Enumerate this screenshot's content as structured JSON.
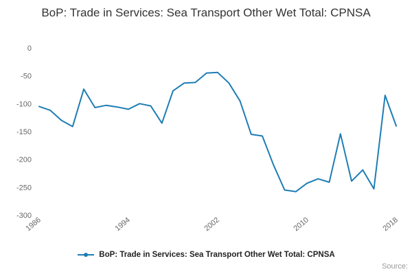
{
  "title": "BoP: Trade in Services: Sea Transport Other Wet Total: CPNSA",
  "legend": {
    "label": "BoP: Trade in Services: Sea Transport Other Wet Total: CPNSA"
  },
  "source_label": "Source:",
  "colors": {
    "line": "#1d7cb4",
    "axis_text": "#666666",
    "title_text": "#333333"
  },
  "chart_data": {
    "type": "line",
    "title": "BoP: Trade in Services: Sea Transport Other Wet Total: CPNSA",
    "xlabel": "",
    "ylabel": "",
    "ylim": [
      -300,
      0
    ],
    "yticks": [
      0,
      -50,
      -100,
      -150,
      -200,
      -250,
      -300
    ],
    "xtick_labels": [
      1986,
      1994,
      2002,
      2010,
      2018
    ],
    "grid": false,
    "legend_position": "bottom",
    "x": [
      1986,
      1987,
      1988,
      1989,
      1990,
      1991,
      1992,
      1993,
      1994,
      1995,
      1996,
      1997,
      1998,
      1999,
      2000,
      2001,
      2002,
      2003,
      2004,
      2005,
      2006,
      2007,
      2008,
      2009,
      2010,
      2011,
      2012,
      2013,
      2014,
      2015,
      2016,
      2017,
      2018
    ],
    "values": [
      -105,
      -112,
      -130,
      -141,
      -74,
      -107,
      -103,
      -106,
      -110,
      -100,
      -104,
      -135,
      -77,
      -63,
      -62,
      -45,
      -44,
      -63,
      -95,
      -155,
      -158,
      -210,
      -255,
      -258,
      -243,
      -235,
      -241,
      -154,
      -239,
      -219,
      -253,
      -85,
      -140
    ]
  }
}
